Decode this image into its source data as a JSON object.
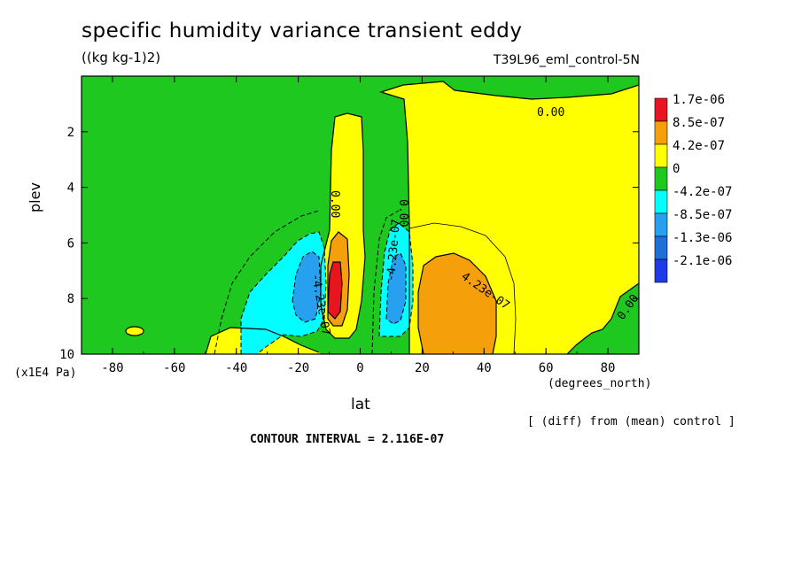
{
  "chart_data": {
    "type": "heatmap",
    "title": "specific humidity variance transient eddy",
    "units": "((kg kg-1)2)",
    "experiment": "T39L96_eml_control-5N",
    "xlabel": "lat",
    "x_units": "(degrees_north)",
    "ylabel": "plev",
    "y_units": "(x1E4 Pa)",
    "xlim": [
      -90,
      90
    ],
    "ylim": [
      10,
      0
    ],
    "x_ticks": [
      "-80",
      "-60",
      "-40",
      "-20",
      "0",
      "20",
      "40",
      "60",
      "80"
    ],
    "x_tick_values": [
      -80,
      -60,
      -40,
      -20,
      0,
      20,
      40,
      60,
      80
    ],
    "y_ticks": [
      "2",
      "4",
      "6",
      "8",
      "10"
    ],
    "y_tick_values": [
      2,
      4,
      6,
      8,
      10
    ],
    "contour_interval": "CONTOUR INTERVAL = 2.116E-07",
    "note": "[ (diff) from (mean) control ]",
    "contour_labels": [
      "0.00",
      "0.00",
      "0.00",
      "0.00",
      "4.23e-07",
      "-4.23e-07",
      "-4.23e-07"
    ],
    "legend": [
      {
        "label": "1.7e-06",
        "color": "#e8141e"
      },
      {
        "label": "8.5e-07",
        "color": "#f5a00a"
      },
      {
        "label": "4.2e-07",
        "color": "#ffff00"
      },
      {
        "label": "0",
        "color": "#1ec81e"
      },
      {
        "label": "-4.2e-07",
        "color": "#00ffff"
      },
      {
        "label": "-8.5e-07",
        "color": "#28a0f0"
      },
      {
        "label": "-1.3e-06",
        "color": "#1e6edc"
      },
      {
        "label": "-2.1e-06",
        "color": "#1e3ce6"
      }
    ],
    "regions": [
      {
        "name": "northern-subtropics-positive",
        "level": "4.2e-07",
        "lat": [
          15,
          90
        ],
        "plev": [
          0.5,
          10
        ]
      },
      {
        "name": "sh-subtropics-negative",
        "level": "-4.2e-07",
        "lat": [
          -38,
          -12
        ],
        "plev": [
          5.5,
          10
        ]
      },
      {
        "name": "nh-tropics-negative",
        "level": "-4.2e-07",
        "lat": [
          6,
          16
        ],
        "plev": [
          5.5,
          9.3
        ]
      },
      {
        "name": "peak-positive",
        "level": "1.7e-06",
        "lat": [
          -11,
          -6
        ],
        "plev": [
          7,
          8.8
        ]
      },
      {
        "name": "nh-lower-positive",
        "level": "8.5e-07",
        "lat": [
          18,
          42
        ],
        "plev": [
          6.8,
          10
        ]
      }
    ]
  }
}
